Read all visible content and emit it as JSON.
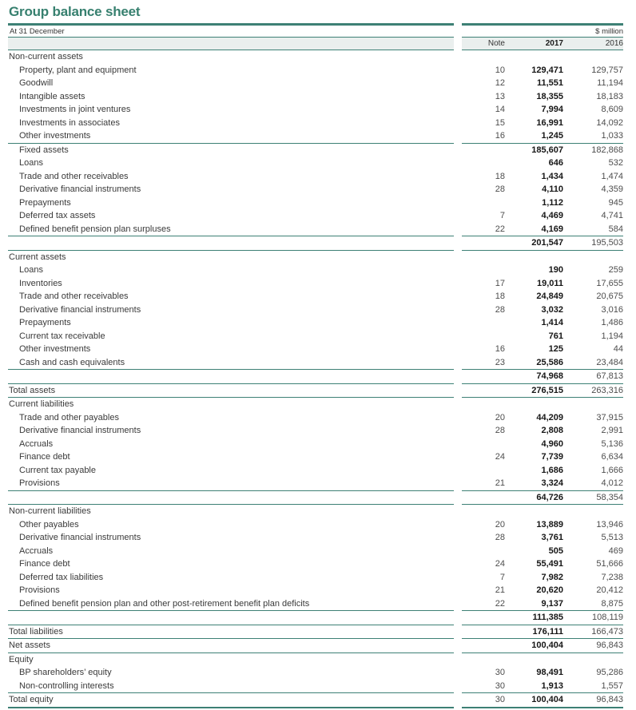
{
  "page": {
    "title": "Group balance sheet",
    "date_label": "At 31 December",
    "unit_label": "$ million",
    "columns": {
      "note": "Note",
      "y2017": "2017",
      "y2016": "2016"
    }
  },
  "colors": {
    "teal_rule": "#3d8075",
    "title_teal": "#37806f",
    "header_band": "#eaefee"
  },
  "rows": [
    {
      "label": "Non-current assets",
      "indent": false,
      "note": "",
      "v2017": "",
      "v2016": "",
      "rule_above": false
    },
    {
      "label": "Property, plant and equipment",
      "indent": true,
      "note": "10",
      "v2017": "129,471",
      "v2016": "129,757",
      "rule_above": false
    },
    {
      "label": "Goodwill",
      "indent": true,
      "note": "12",
      "v2017": "11,551",
      "v2016": "11,194",
      "rule_above": false
    },
    {
      "label": "Intangible assets",
      "indent": true,
      "note": "13",
      "v2017": "18,355",
      "v2016": "18,183",
      "rule_above": false
    },
    {
      "label": "Investments in joint ventures",
      "indent": true,
      "note": "14",
      "v2017": "7,994",
      "v2016": "8,609",
      "rule_above": false
    },
    {
      "label": "Investments in associates",
      "indent": true,
      "note": "15",
      "v2017": "16,991",
      "v2016": "14,092",
      "rule_above": false
    },
    {
      "label": "Other investments",
      "indent": true,
      "note": "16",
      "v2017": "1,245",
      "v2016": "1,033",
      "rule_above": false
    },
    {
      "label": "Fixed assets",
      "indent": true,
      "note": "",
      "v2017": "185,607",
      "v2016": "182,868",
      "rule_above": true
    },
    {
      "label": "Loans",
      "indent": true,
      "note": "",
      "v2017": "646",
      "v2016": "532",
      "rule_above": false
    },
    {
      "label": "Trade and other receivables",
      "indent": true,
      "note": "18",
      "v2017": "1,434",
      "v2016": "1,474",
      "rule_above": false
    },
    {
      "label": "Derivative financial instruments",
      "indent": true,
      "note": "28",
      "v2017": "4,110",
      "v2016": "4,359",
      "rule_above": false
    },
    {
      "label": "Prepayments",
      "indent": true,
      "note": "",
      "v2017": "1,112",
      "v2016": "945",
      "rule_above": false
    },
    {
      "label": "Deferred tax assets",
      "indent": true,
      "note": "7",
      "v2017": "4,469",
      "v2016": "4,741",
      "rule_above": false
    },
    {
      "label": "Defined benefit pension plan surpluses",
      "indent": true,
      "note": "22",
      "v2017": "4,169",
      "v2016": "584",
      "rule_above": false
    },
    {
      "label": "",
      "indent": false,
      "note": "",
      "v2017": "201,547",
      "v2016": "195,503",
      "rule_above": true
    },
    {
      "label": "Current assets",
      "indent": false,
      "note": "",
      "v2017": "",
      "v2016": "",
      "rule_above": true
    },
    {
      "label": "Loans",
      "indent": true,
      "note": "",
      "v2017": "190",
      "v2016": "259",
      "rule_above": false
    },
    {
      "label": "Inventories",
      "indent": true,
      "note": "17",
      "v2017": "19,011",
      "v2016": "17,655",
      "rule_above": false
    },
    {
      "label": "Trade and other receivables",
      "indent": true,
      "note": "18",
      "v2017": "24,849",
      "v2016": "20,675",
      "rule_above": false
    },
    {
      "label": "Derivative financial instruments",
      "indent": true,
      "note": "28",
      "v2017": "3,032",
      "v2016": "3,016",
      "rule_above": false
    },
    {
      "label": "Prepayments",
      "indent": true,
      "note": "",
      "v2017": "1,414",
      "v2016": "1,486",
      "rule_above": false
    },
    {
      "label": "Current tax receivable",
      "indent": true,
      "note": "",
      "v2017": "761",
      "v2016": "1,194",
      "rule_above": false
    },
    {
      "label": "Other investments",
      "indent": true,
      "note": "16",
      "v2017": "125",
      "v2016": "44",
      "rule_above": false
    },
    {
      "label": "Cash and cash equivalents",
      "indent": true,
      "note": "23",
      "v2017": "25,586",
      "v2016": "23,484",
      "rule_above": false
    },
    {
      "label": "",
      "indent": false,
      "note": "",
      "v2017": "74,968",
      "v2016": "67,813",
      "rule_above": true
    },
    {
      "label": "Total assets",
      "indent": false,
      "note": "",
      "v2017": "276,515",
      "v2016": "263,316",
      "rule_above": true
    },
    {
      "label": "Current liabilities",
      "indent": false,
      "note": "",
      "v2017": "",
      "v2016": "",
      "rule_above": true
    },
    {
      "label": "Trade and other payables",
      "indent": true,
      "note": "20",
      "v2017": "44,209",
      "v2016": "37,915",
      "rule_above": false
    },
    {
      "label": "Derivative financial instruments",
      "indent": true,
      "note": "28",
      "v2017": "2,808",
      "v2016": "2,991",
      "rule_above": false
    },
    {
      "label": "Accruals",
      "indent": true,
      "note": "",
      "v2017": "4,960",
      "v2016": "5,136",
      "rule_above": false
    },
    {
      "label": "Finance debt",
      "indent": true,
      "note": "24",
      "v2017": "7,739",
      "v2016": "6,634",
      "rule_above": false
    },
    {
      "label": "Current tax payable",
      "indent": true,
      "note": "",
      "v2017": "1,686",
      "v2016": "1,666",
      "rule_above": false
    },
    {
      "label": "Provisions",
      "indent": true,
      "note": "21",
      "v2017": "3,324",
      "v2016": "4,012",
      "rule_above": false
    },
    {
      "label": "",
      "indent": false,
      "note": "",
      "v2017": "64,726",
      "v2016": "58,354",
      "rule_above": true
    },
    {
      "label": "Non-current liabilities",
      "indent": false,
      "note": "",
      "v2017": "",
      "v2016": "",
      "rule_above": true
    },
    {
      "label": "Other payables",
      "indent": true,
      "note": "20",
      "v2017": "13,889",
      "v2016": "13,946",
      "rule_above": false
    },
    {
      "label": "Derivative financial instruments",
      "indent": true,
      "note": "28",
      "v2017": "3,761",
      "v2016": "5,513",
      "rule_above": false
    },
    {
      "label": "Accruals",
      "indent": true,
      "note": "",
      "v2017": "505",
      "v2016": "469",
      "rule_above": false
    },
    {
      "label": "Finance debt",
      "indent": true,
      "note": "24",
      "v2017": "55,491",
      "v2016": "51,666",
      "rule_above": false
    },
    {
      "label": "Deferred tax liabilities",
      "indent": true,
      "note": "7",
      "v2017": "7,982",
      "v2016": "7,238",
      "rule_above": false
    },
    {
      "label": "Provisions",
      "indent": true,
      "note": "21",
      "v2017": "20,620",
      "v2016": "20,412",
      "rule_above": false
    },
    {
      "label": "Defined benefit pension plan and other post-retirement benefit plan deficits",
      "indent": true,
      "note": "22",
      "v2017": "9,137",
      "v2016": "8,875",
      "rule_above": false
    },
    {
      "label": "",
      "indent": false,
      "note": "",
      "v2017": "111,385",
      "v2016": "108,119",
      "rule_above": true
    },
    {
      "label": "Total liabilities",
      "indent": false,
      "note": "",
      "v2017": "176,111",
      "v2016": "166,473",
      "rule_above": true
    },
    {
      "label": "Net assets",
      "indent": false,
      "note": "",
      "v2017": "100,404",
      "v2016": "96,843",
      "rule_above": true
    },
    {
      "label": "Equity",
      "indent": false,
      "note": "",
      "v2017": "",
      "v2016": "",
      "rule_above": true
    },
    {
      "label": "BP shareholders’ equity",
      "indent": true,
      "note": "30",
      "v2017": "98,491",
      "v2016": "95,286",
      "rule_above": false
    },
    {
      "label": "Non-controlling interests",
      "indent": true,
      "note": "30",
      "v2017": "1,913",
      "v2016": "1,557",
      "rule_above": false
    },
    {
      "label": "Total equity",
      "indent": false,
      "note": "30",
      "v2017": "100,404",
      "v2016": "96,843",
      "rule_above": true
    }
  ]
}
